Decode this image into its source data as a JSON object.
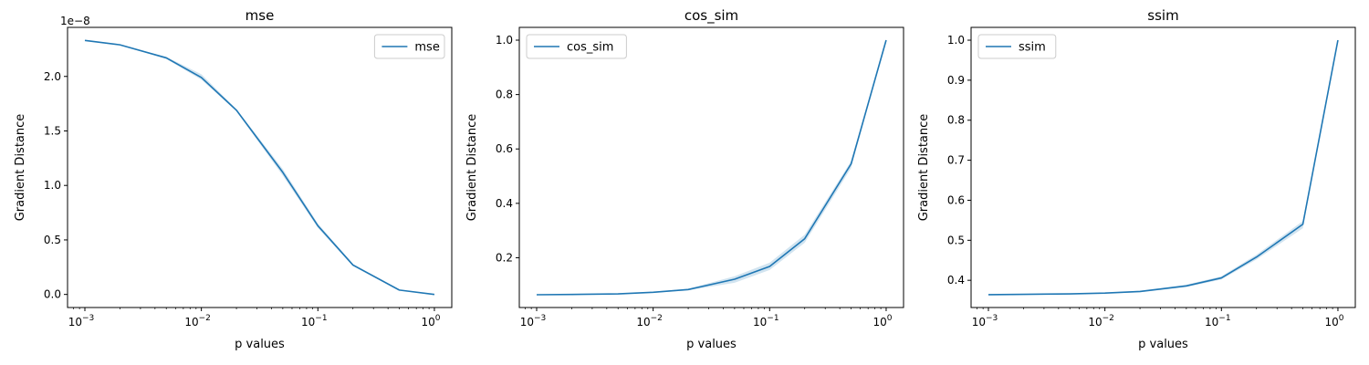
{
  "chart_data": [
    {
      "type": "line",
      "title": "mse",
      "xlabel": "p values",
      "ylabel": "Gradient Distance",
      "xscale": "log",
      "xlim": [
        0.00071,
        1.41
      ],
      "ylim": [
        -1.2e-09,
        2.45e-08
      ],
      "x_tick_labels": [
        "10",
        "10",
        "10",
        "10"
      ],
      "x_tick_exponents": [
        "−3",
        "−2",
        "−1",
        "0"
      ],
      "x_tick_values": [
        0.001,
        0.01,
        0.1,
        1
      ],
      "y_tick_labels": [
        "0.0",
        "0.5",
        "1.0",
        "1.5",
        "2.0"
      ],
      "y_tick_values": [
        0,
        5e-09,
        1e-08,
        1.5e-08,
        2e-08
      ],
      "y_offset_text": "1e−8",
      "legend": {
        "placement": "upper right",
        "entries": [
          "mse"
        ]
      },
      "grid": false,
      "color": "#1f77b4",
      "series": [
        {
          "name": "mse",
          "x": [
            0.001,
            0.002,
            0.005,
            0.01,
            0.02,
            0.05,
            0.1,
            0.2,
            0.5,
            1.0
          ],
          "y": [
            2.33e-08,
            2.29e-08,
            2.17e-08,
            1.99e-08,
            1.69e-08,
            1.12e-08,
            6.3e-09,
            2.7e-09,
            4e-10,
            0
          ],
          "lower": [
            2.33e-08,
            2.29e-08,
            2.16e-08,
            1.97e-08,
            1.68e-08,
            1.09e-08,
            6.1e-09,
            2.6e-09,
            3.5e-10,
            0
          ],
          "upper": [
            2.33e-08,
            2.29e-08,
            2.18e-08,
            2.02e-08,
            1.7e-08,
            1.15e-08,
            6.5e-09,
            2.8e-09,
            4.5e-10,
            0
          ]
        }
      ]
    },
    {
      "type": "line",
      "title": "cos_sim",
      "xlabel": "p values",
      "ylabel": "Gradient Distance",
      "xscale": "log",
      "xlim": [
        0.00071,
        1.41
      ],
      "ylim": [
        0.017,
        1.047
      ],
      "x_tick_labels": [
        "10",
        "10",
        "10",
        "10"
      ],
      "x_tick_exponents": [
        "−3",
        "−2",
        "−1",
        "0"
      ],
      "x_tick_values": [
        0.001,
        0.01,
        0.1,
        1
      ],
      "y_tick_labels": [
        "0.2",
        "0.4",
        "0.6",
        "0.8",
        "1.0"
      ],
      "y_tick_values": [
        0.2,
        0.4,
        0.6,
        0.8,
        1.0
      ],
      "legend": {
        "placement": "upper left",
        "entries": [
          "cos_sim"
        ]
      },
      "grid": false,
      "color": "#1f77b4",
      "series": [
        {
          "name": "cos_sim",
          "x": [
            0.001,
            0.002,
            0.005,
            0.01,
            0.02,
            0.05,
            0.1,
            0.2,
            0.5,
            1.0
          ],
          "y": [
            0.064,
            0.065,
            0.067,
            0.073,
            0.083,
            0.121,
            0.168,
            0.27,
            0.545,
            1.0
          ],
          "lower": [
            0.064,
            0.064,
            0.066,
            0.071,
            0.08,
            0.108,
            0.155,
            0.255,
            0.53,
            1.0
          ],
          "upper": [
            0.064,
            0.066,
            0.068,
            0.075,
            0.086,
            0.132,
            0.182,
            0.285,
            0.555,
            1.0
          ]
        }
      ]
    },
    {
      "type": "line",
      "title": "ssim",
      "xlabel": "p values",
      "ylabel": "Gradient Distance",
      "xscale": "log",
      "xlim": [
        0.00071,
        1.41
      ],
      "ylim": [
        0.332,
        1.032
      ],
      "x_tick_labels": [
        "10",
        "10",
        "10",
        "10"
      ],
      "x_tick_exponents": [
        "−3",
        "−2",
        "−1",
        "0"
      ],
      "x_tick_values": [
        0.001,
        0.01,
        0.1,
        1
      ],
      "y_tick_labels": [
        "0.4",
        "0.5",
        "0.6",
        "0.7",
        "0.8",
        "0.9",
        "1.0"
      ],
      "y_tick_values": [
        0.4,
        0.5,
        0.6,
        0.7,
        0.8,
        0.9,
        1.0
      ],
      "legend": {
        "placement": "upper left",
        "entries": [
          "ssim"
        ]
      },
      "grid": false,
      "color": "#1f77b4",
      "series": [
        {
          "name": "ssim",
          "x": [
            0.001,
            0.002,
            0.005,
            0.01,
            0.02,
            0.05,
            0.1,
            0.2,
            0.5,
            1.0
          ],
          "y": [
            0.364,
            0.365,
            0.366,
            0.368,
            0.372,
            0.386,
            0.406,
            0.458,
            0.54,
            1.0
          ],
          "lower": [
            0.364,
            0.364,
            0.365,
            0.367,
            0.37,
            0.383,
            0.402,
            0.452,
            0.53,
            1.0
          ],
          "upper": [
            0.364,
            0.366,
            0.367,
            0.369,
            0.374,
            0.389,
            0.41,
            0.464,
            0.548,
            1.0
          ]
        }
      ]
    }
  ]
}
